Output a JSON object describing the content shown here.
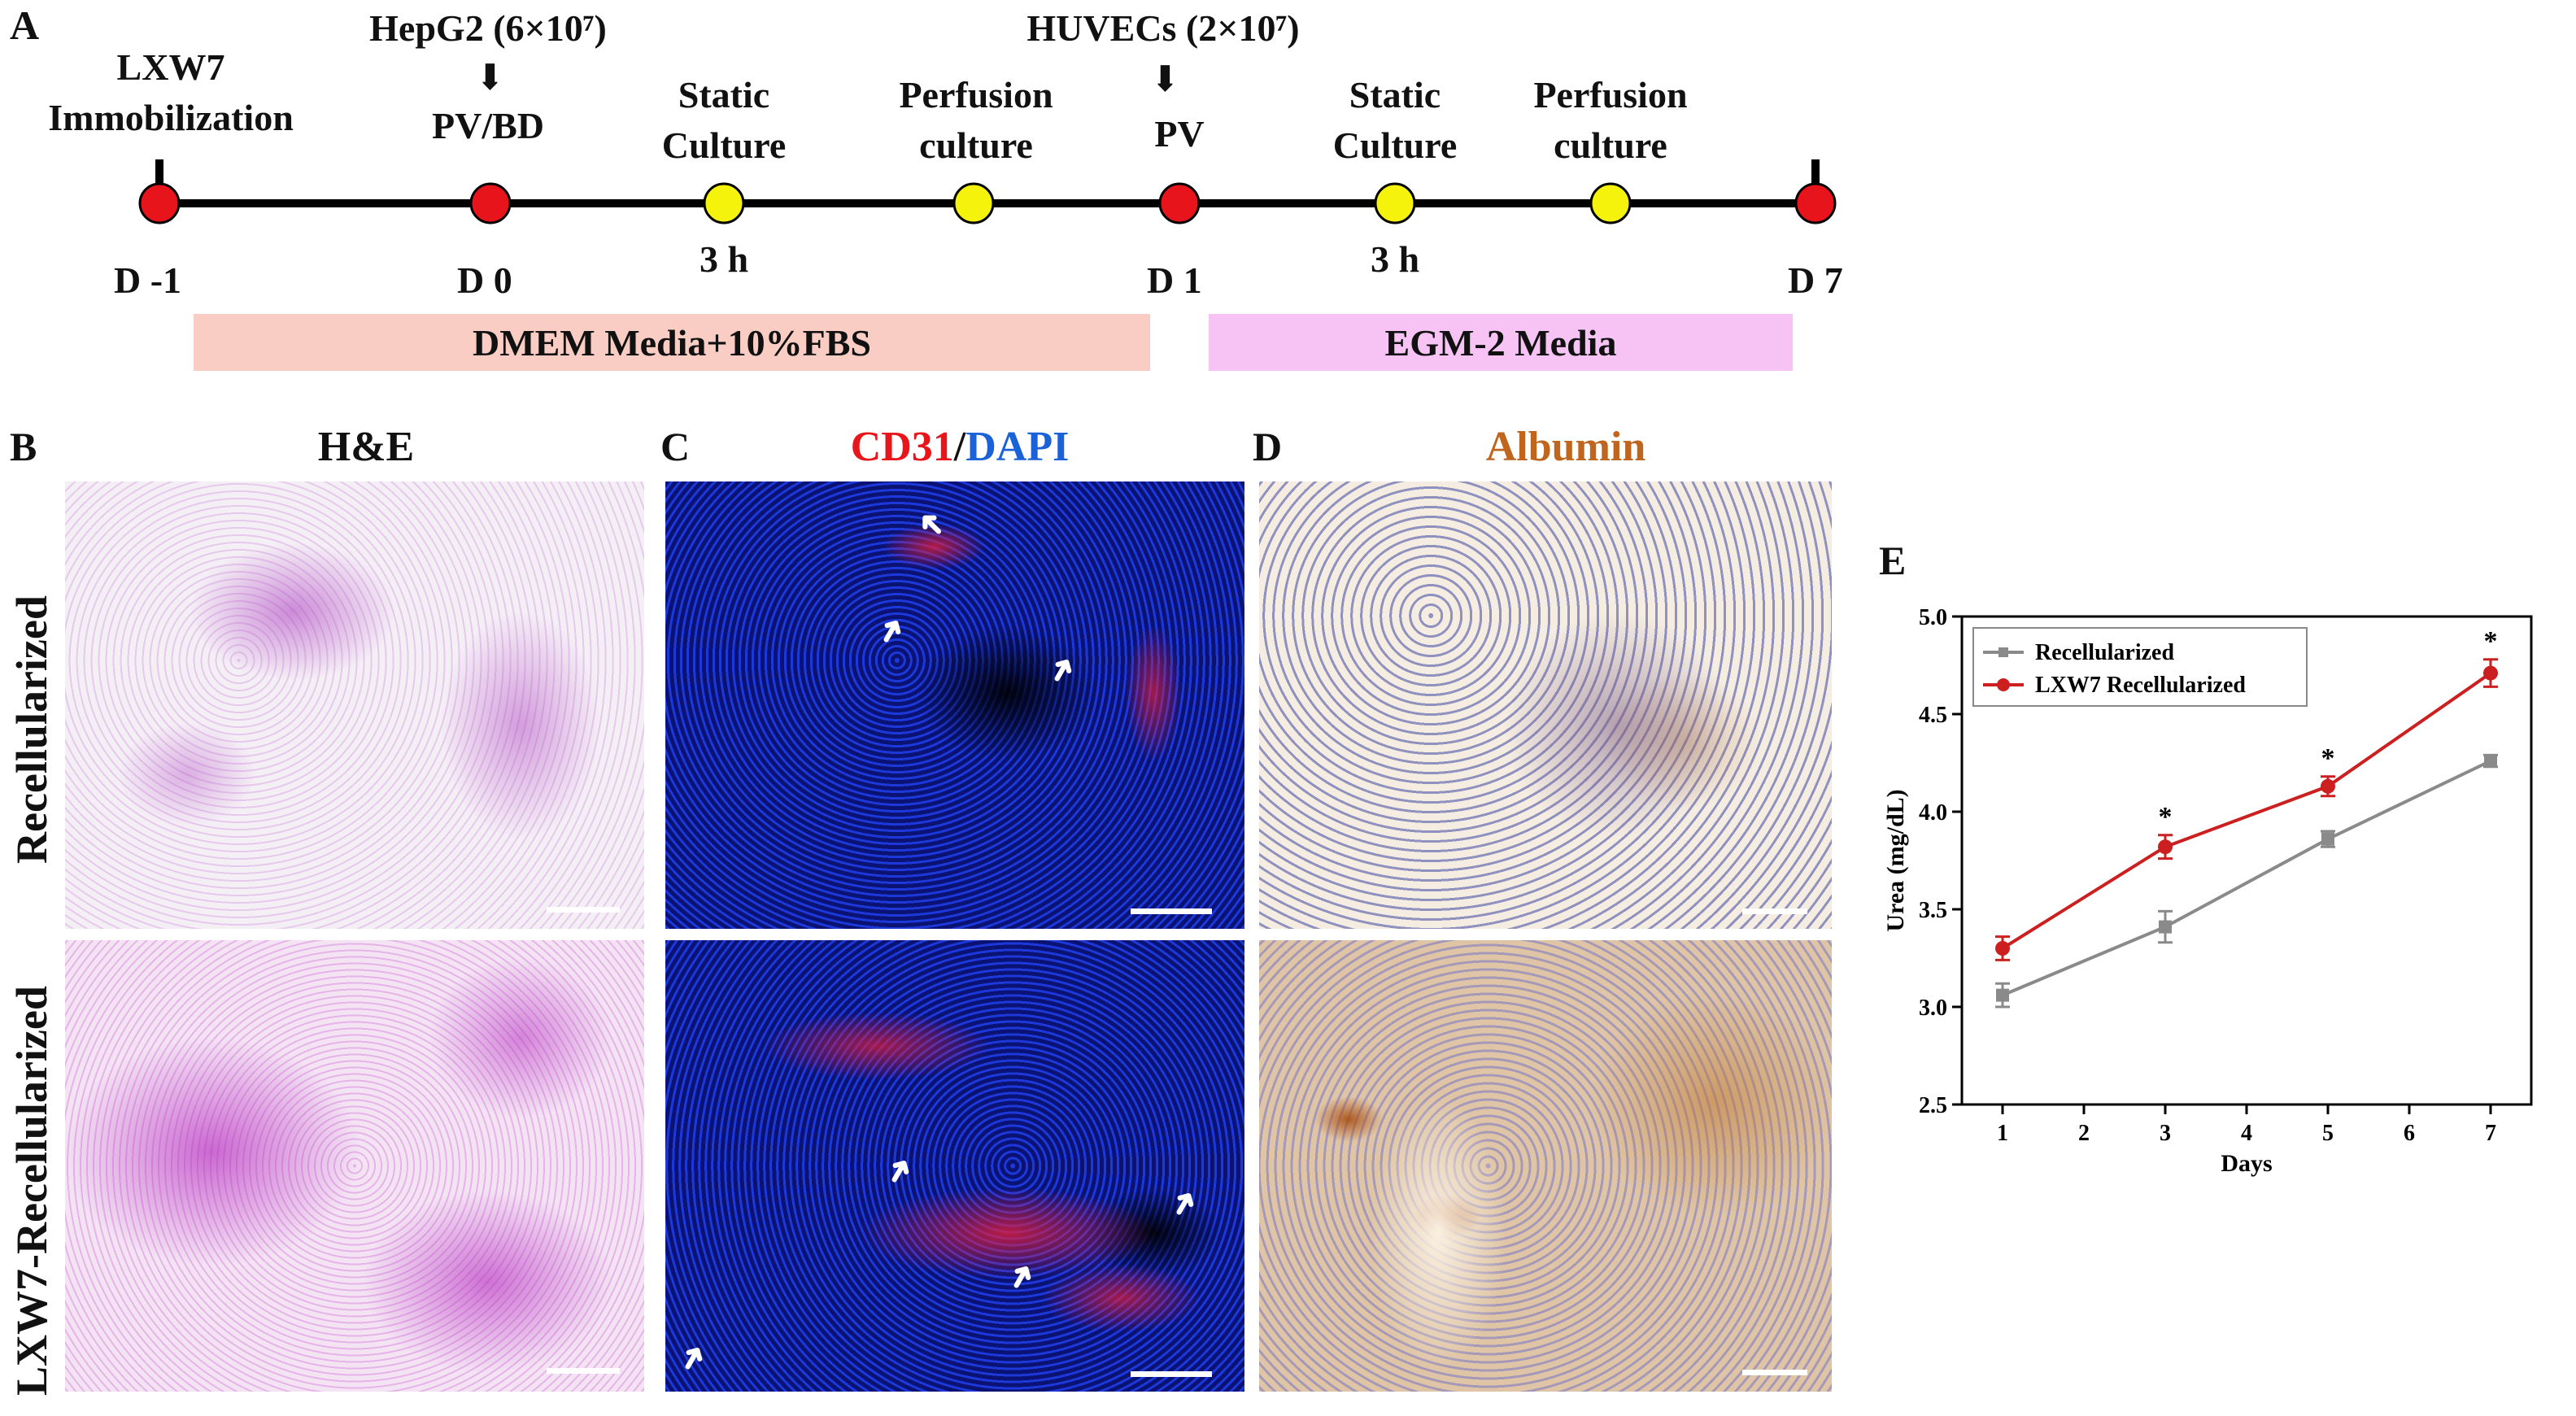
{
  "panels": {
    "A": "A",
    "B": "B",
    "C": "C",
    "D": "D",
    "E": "E"
  },
  "timeline": {
    "events": [
      {
        "label": "LXW7 Immobilization",
        "day": "D -1"
      },
      {
        "label": "HepG2 (6×10⁷)",
        "sub": "PV/BD",
        "day": "D 0"
      },
      {
        "label": "Static Culture",
        "time": "3 h"
      },
      {
        "label": "Perfusion culture"
      },
      {
        "label": "HUVECs (2×10⁷)",
        "sub": "PV",
        "day": "D 1"
      },
      {
        "label": "Static Culture",
        "time": "3 h"
      },
      {
        "label": "Perfusion culture"
      },
      {
        "day": "D 7"
      }
    ],
    "media": [
      {
        "label": "DMEM Media+10%FBS",
        "color": "#f9cdc3"
      },
      {
        "label": "EGM-2 Media",
        "color": "#f6c3f4"
      }
    ],
    "colors": {
      "node_red": "#e8141b",
      "node_yellow": "#f5f20c",
      "line": "#000000"
    }
  },
  "columns": {
    "he": "H&E",
    "cd31": "CD31",
    "slash": "/",
    "dapi": "DAPI",
    "albumin": "Albumin",
    "colors": {
      "cd31": "#e8161b",
      "dapi": "#1b62d8",
      "albumin": "#c0651e"
    }
  },
  "rows": [
    "Recellularized",
    "LXW7-Recellularized"
  ],
  "chart_data": {
    "type": "line",
    "xlabel": "Days",
    "ylabel": "Urea (mg/dL)",
    "x": [
      1,
      3,
      5,
      7
    ],
    "xlim": [
      0.5,
      7.5
    ],
    "xticks": [
      1,
      2,
      3,
      4,
      5,
      6,
      7
    ],
    "ylim": [
      2.5,
      5.0
    ],
    "yticks": [
      "2.5",
      "3.0",
      "3.5",
      "4.0",
      "4.5",
      "5.0"
    ],
    "legend_position": "top-left",
    "series": [
      {
        "name": "Recellularized",
        "color": "#8a8a8a",
        "marker": "square",
        "values": [
          3.06,
          3.41,
          3.86,
          4.26
        ],
        "errors": [
          0.06,
          0.08,
          0.04,
          0.03
        ]
      },
      {
        "name": "LXW7 Recellularized",
        "color": "#cc1f1f",
        "marker": "circle",
        "values": [
          3.3,
          3.82,
          4.13,
          4.71
        ],
        "errors": [
          0.06,
          0.06,
          0.05,
          0.07
        ]
      }
    ],
    "significance": [
      {
        "x": 3,
        "label": "*"
      },
      {
        "x": 5,
        "label": "*"
      },
      {
        "x": 7,
        "label": "*"
      }
    ]
  }
}
